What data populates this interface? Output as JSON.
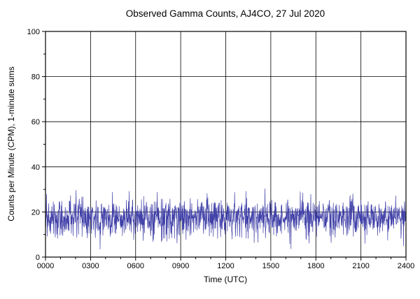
{
  "page": {
    "background_color": "#ffffff"
  },
  "chart_data": {
    "type": "line",
    "title": "Observed Gamma Counts, AJ4CO, 27 Jul 2020",
    "xlabel": "Time (UTC)",
    "ylabel": "Counts per Minute (CPM), 1-minute sums",
    "xlim_minutes": [
      0,
      1440
    ],
    "ylim": [
      0,
      100
    ],
    "x_tick_minutes": [
      0,
      180,
      360,
      540,
      720,
      900,
      1080,
      1260,
      1440
    ],
    "x_tick_labels": [
      "0000",
      "0300",
      "0600",
      "0900",
      "1200",
      "1500",
      "1800",
      "2100",
      "2400"
    ],
    "x_minor_tick_step_minutes": 60,
    "y_tick_values": [
      0,
      20,
      40,
      60,
      80,
      100
    ],
    "y_tick_labels": [
      "0",
      "20",
      "40",
      "60",
      "80",
      "100"
    ],
    "y_minor_tick_step": 10,
    "grid": true,
    "grid_color": "#000000",
    "axis_color": "#000000",
    "legend": "none",
    "series": [
      {
        "name": "Observed gamma counts, 1-minute sums",
        "color": "#4040a8",
        "points_per_day": 1440,
        "approx_mean_cpm": 17.5,
        "approx_std_cpm": 4.3,
        "approx_min_cpm": 5,
        "approx_max_cpm": 33,
        "description": "Dense noisy background-radiation count trace spanning 0000-2400 UTC, fluctuating in a band of roughly 5 to 33 CPM centered near 17 CPM with no trend",
        "prng_seed": 20200727
      }
    ]
  }
}
